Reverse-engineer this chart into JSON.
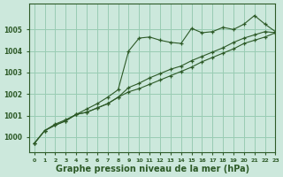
{
  "background_color": "#cce8dc",
  "grid_color": "#99ccb3",
  "line_color": "#2d5a27",
  "marker_color": "#2d5a27",
  "xlabel": "Graphe pression niveau de la mer (hPa)",
  "xlabel_fontsize": 7,
  "xlim": [
    -0.5,
    23
  ],
  "ylim": [
    999.3,
    1006.2
  ],
  "yticks": [
    1000,
    1001,
    1002,
    1003,
    1004,
    1005
  ],
  "xticks": [
    0,
    1,
    2,
    3,
    4,
    5,
    6,
    7,
    8,
    9,
    10,
    11,
    12,
    13,
    14,
    15,
    16,
    17,
    18,
    19,
    20,
    21,
    22,
    23
  ],
  "series": [
    [
      999.7,
      1000.3,
      1000.6,
      1000.8,
      1001.05,
      1001.3,
      1001.55,
      1001.85,
      1002.2,
      1004.0,
      1004.6,
      1004.65,
      1004.5,
      1004.4,
      1004.35,
      1005.05,
      1004.85,
      1004.9,
      1005.1,
      1005.0,
      1005.25,
      1005.65,
      1005.25,
      1004.9
    ],
    [
      999.7,
      1000.3,
      1000.55,
      1000.75,
      1001.05,
      1001.15,
      1001.35,
      1001.55,
      1001.85,
      1002.3,
      1002.5,
      1002.75,
      1002.95,
      1003.15,
      1003.3,
      1003.55,
      1003.75,
      1003.95,
      1004.15,
      1004.4,
      1004.6,
      1004.75,
      1004.9,
      1004.85
    ],
    [
      999.7,
      1000.3,
      1000.55,
      1000.75,
      1001.05,
      1001.15,
      1001.35,
      1001.55,
      1001.85,
      1002.1,
      1002.25,
      1002.45,
      1002.65,
      1002.85,
      1003.05,
      1003.25,
      1003.5,
      1003.7,
      1003.9,
      1004.1,
      1004.35,
      1004.5,
      1004.65,
      1004.85
    ]
  ]
}
